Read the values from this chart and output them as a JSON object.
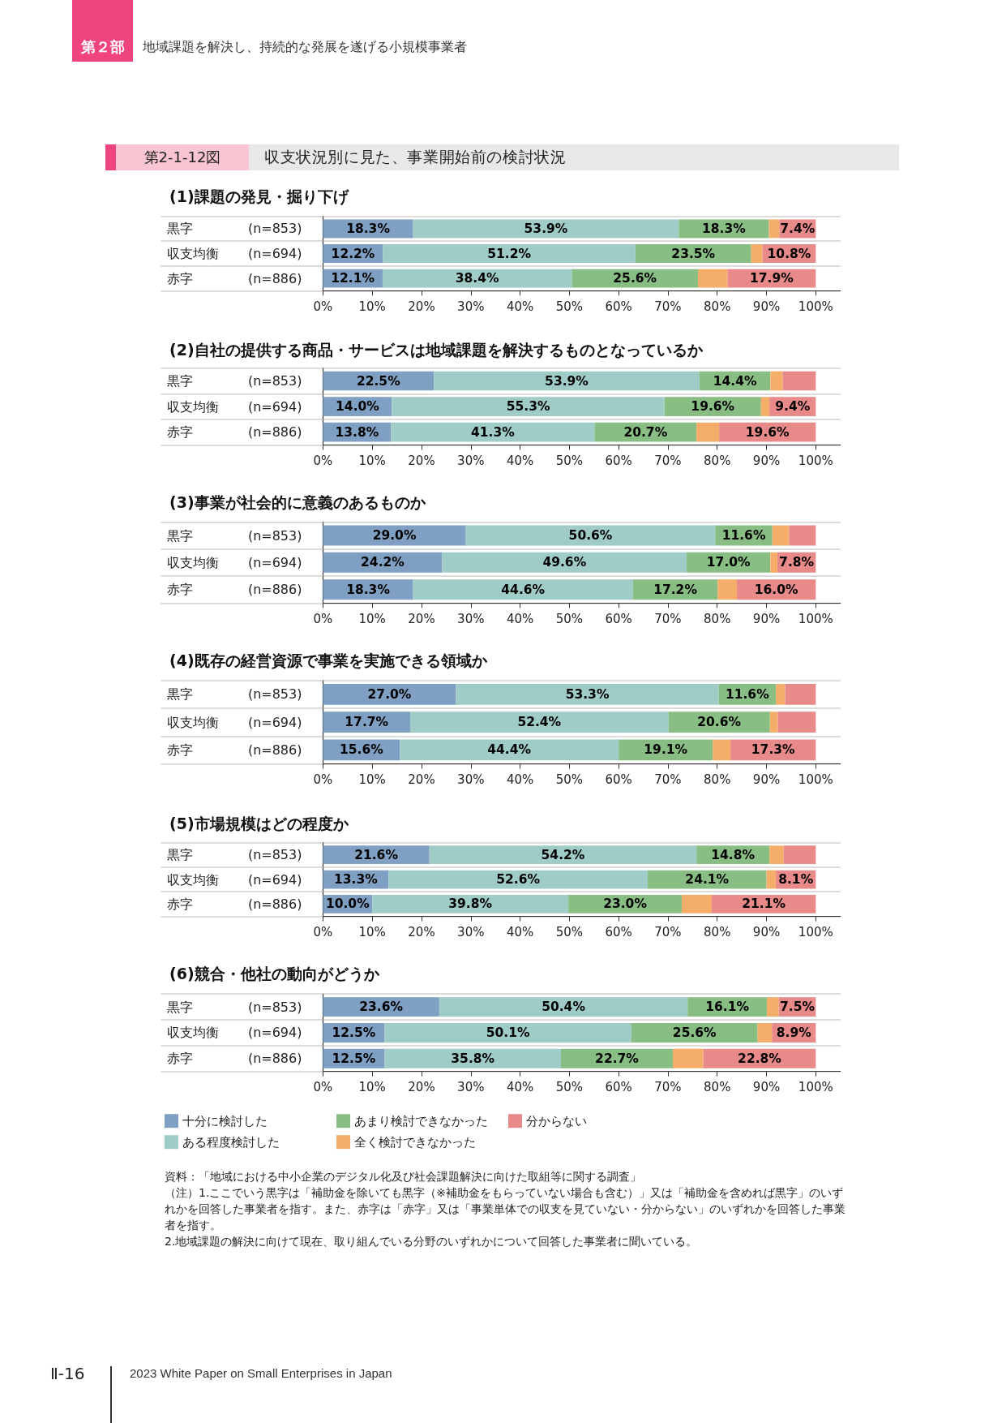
{
  "chart_data": [
    {
      "type": "bar",
      "orientation": "horizontal",
      "stacked": true,
      "title": "(1)課題の発見・掘り下げ",
      "annotations": [
        "第２部",
        "地域課題を解決し、持続的な発展を遂げる小規模事業者",
        "第2-1-12図",
        "収支状況別に見た、事業開始前の検討状況"
      ],
      "categories": [
        "黒字 (n=853)",
        "収支均衡 (n=694)",
        "赤字 (n=886)"
      ],
      "series": [
        {
          "color": "#7f9fc3",
          "values": [
            18.3,
            12.2,
            12.1
          ],
          "value_labels": [
            "18.3%",
            "12.2%",
            "12.1%"
          ]
        },
        {
          "color": "#9fccc7",
          "values": [
            53.9,
            51.2,
            38.4
          ],
          "value_labels": [
            "53.9%",
            "51.2%",
            "38.4%"
          ]
        },
        {
          "color": "#88bd83",
          "values": [
            18.3,
            23.5,
            25.6
          ],
          "value_labels": [
            "18.3%",
            "23.5%",
            "25.6%"
          ]
        },
        {
          "color": "#f4ae6a",
          "values": [
            2.1,
            2.3,
            6.0
          ],
          "value_labels": [
            null,
            null,
            null
          ]
        },
        {
          "color": "#e98a8a",
          "values": [
            7.4,
            10.8,
            17.9
          ],
          "value_labels": [
            "7.4%",
            "10.8%",
            "17.9%"
          ]
        }
      ],
      "xlim": [
        0,
        105
      ],
      "xticks": [
        {
          "value": 0,
          "label": "0%"
        },
        {
          "value": 10,
          "label": "10%"
        },
        {
          "value": 20,
          "label": "20%"
        },
        {
          "value": 30,
          "label": "30%"
        },
        {
          "value": 40,
          "label": "40%"
        },
        {
          "value": 50,
          "label": "50%"
        },
        {
          "value": 60,
          "label": "60%"
        },
        {
          "value": 70,
          "label": "70%"
        },
        {
          "value": 80,
          "label": "80%"
        },
        {
          "value": 90,
          "label": "90%"
        },
        {
          "value": 100,
          "label": "100%"
        }
      ],
      "grid": "y",
      "legend": false
    },
    {
      "type": "bar",
      "orientation": "horizontal",
      "stacked": true,
      "title": "(2)自社の提供する商品・サービスは地域課題を解決するものとなっているか",
      "categories": [
        "黒字 (n=853)",
        "収支均衡 (n=694)",
        "赤字 (n=886)"
      ],
      "series": [
        {
          "color": "#7f9fc3",
          "values": [
            22.5,
            14.0,
            13.8
          ],
          "value_labels": [
            "22.5%",
            "14.0%",
            "13.8%"
          ]
        },
        {
          "color": "#9fccc7",
          "values": [
            53.9,
            55.3,
            41.3
          ],
          "value_labels": [
            "53.9%",
            "55.3%",
            "41.3%"
          ]
        },
        {
          "color": "#88bd83",
          "values": [
            14.4,
            19.6,
            20.7
          ],
          "value_labels": [
            "14.4%",
            "19.6%",
            "20.7%"
          ]
        },
        {
          "color": "#f4ae6a",
          "values": [
            2.5,
            1.7,
            4.6
          ],
          "value_labels": [
            null,
            null,
            null
          ]
        },
        {
          "color": "#e98a8a",
          "values": [
            6.7,
            9.4,
            19.6
          ],
          "value_labels": [
            null,
            "9.4%",
            "19.6%"
          ]
        }
      ],
      "xlim": [
        0,
        105
      ],
      "xticks": [
        {
          "value": 0,
          "label": "0%"
        },
        {
          "value": 10,
          "label": "10%"
        },
        {
          "value": 20,
          "label": "20%"
        },
        {
          "value": 30,
          "label": "30%"
        },
        {
          "value": 40,
          "label": "40%"
        },
        {
          "value": 50,
          "label": "50%"
        },
        {
          "value": 60,
          "label": "60%"
        },
        {
          "value": 70,
          "label": "70%"
        },
        {
          "value": 80,
          "label": "80%"
        },
        {
          "value": 90,
          "label": "90%"
        },
        {
          "value": 100,
          "label": "100%"
        }
      ],
      "grid": "y",
      "legend": false
    },
    {
      "type": "bar",
      "orientation": "horizontal",
      "stacked": true,
      "title": "(3)事業が社会的に意義のあるものか",
      "categories": [
        "黒字 (n=853)",
        "収支均衡 (n=694)",
        "赤字 (n=886)"
      ],
      "series": [
        {
          "color": "#7f9fc3",
          "values": [
            29.0,
            24.2,
            18.3
          ],
          "value_labels": [
            "29.0%",
            "24.2%",
            "18.3%"
          ]
        },
        {
          "color": "#9fccc7",
          "values": [
            50.6,
            49.6,
            44.6
          ],
          "value_labels": [
            "50.6%",
            "49.6%",
            "44.6%"
          ]
        },
        {
          "color": "#88bd83",
          "values": [
            11.6,
            17.0,
            17.2
          ],
          "value_labels": [
            "11.6%",
            "17.0%",
            "17.2%"
          ]
        },
        {
          "color": "#f4ae6a",
          "values": [
            3.4,
            1.4,
            3.9
          ],
          "value_labels": [
            null,
            null,
            null
          ]
        },
        {
          "color": "#e98a8a",
          "values": [
            5.4,
            7.8,
            16.0
          ],
          "value_labels": [
            null,
            "7.8%",
            "16.0%"
          ]
        }
      ],
      "xlim": [
        0,
        105
      ],
      "xticks": [
        {
          "value": 0,
          "label": "0%"
        },
        {
          "value": 10,
          "label": "10%"
        },
        {
          "value": 20,
          "label": "20%"
        },
        {
          "value": 30,
          "label": "30%"
        },
        {
          "value": 40,
          "label": "40%"
        },
        {
          "value": 50,
          "label": "50%"
        },
        {
          "value": 60,
          "label": "60%"
        },
        {
          "value": 70,
          "label": "70%"
        },
        {
          "value": 80,
          "label": "80%"
        },
        {
          "value": 90,
          "label": "90%"
        },
        {
          "value": 100,
          "label": "100%"
        }
      ],
      "grid": "y",
      "legend": false
    },
    {
      "type": "bar",
      "orientation": "horizontal",
      "stacked": true,
      "title": "(4)既存の経営資源で事業を実施できる領域か",
      "categories": [
        "黒字 (n=853)",
        "収支均衡 (n=694)",
        "赤字 (n=886)"
      ],
      "series": [
        {
          "color": "#7f9fc3",
          "values": [
            27.0,
            17.7,
            15.6
          ],
          "value_labels": [
            "27.0%",
            "17.7%",
            "15.6%"
          ]
        },
        {
          "color": "#9fccc7",
          "values": [
            53.3,
            52.4,
            44.4
          ],
          "value_labels": [
            "53.3%",
            "52.4%",
            "44.4%"
          ]
        },
        {
          "color": "#88bd83",
          "values": [
            11.6,
            20.6,
            19.1
          ],
          "value_labels": [
            "11.6%",
            "20.6%",
            "19.1%"
          ]
        },
        {
          "color": "#f4ae6a",
          "values": [
            1.9,
            1.6,
            3.6
          ],
          "value_labels": [
            null,
            null,
            null
          ]
        },
        {
          "color": "#e98a8a",
          "values": [
            6.2,
            7.7,
            17.3
          ],
          "value_labels": [
            null,
            null,
            "17.3%"
          ]
        }
      ],
      "xlim": [
        0,
        105
      ],
      "xticks": [
        {
          "value": 0,
          "label": "0%"
        },
        {
          "value": 10,
          "label": "10%"
        },
        {
          "value": 20,
          "label": "20%"
        },
        {
          "value": 30,
          "label": "30%"
        },
        {
          "value": 40,
          "label": "40%"
        },
        {
          "value": 50,
          "label": "50%"
        },
        {
          "value": 60,
          "label": "60%"
        },
        {
          "value": 70,
          "label": "70%"
        },
        {
          "value": 80,
          "label": "80%"
        },
        {
          "value": 90,
          "label": "90%"
        },
        {
          "value": 100,
          "label": "100%"
        }
      ],
      "grid": "y",
      "legend": false
    },
    {
      "type": "bar",
      "orientation": "horizontal",
      "stacked": true,
      "title": "(5)市場規模はどの程度か",
      "categories": [
        "黒字 (n=853)",
        "収支均衡 (n=694)",
        "赤字 (n=886)"
      ],
      "series": [
        {
          "color": "#7f9fc3",
          "values": [
            21.6,
            13.3,
            10.0
          ],
          "value_labels": [
            "21.6%",
            "13.3%",
            "10.0%"
          ]
        },
        {
          "color": "#9fccc7",
          "values": [
            54.2,
            52.6,
            39.8
          ],
          "value_labels": [
            "54.2%",
            "52.6%",
            "39.8%"
          ]
        },
        {
          "color": "#88bd83",
          "values": [
            14.8,
            24.1,
            23.0
          ],
          "value_labels": [
            "14.8%",
            "24.1%",
            "23.0%"
          ]
        },
        {
          "color": "#f4ae6a",
          "values": [
            2.9,
            1.9,
            6.1
          ],
          "value_labels": [
            null,
            null,
            null
          ]
        },
        {
          "color": "#e98a8a",
          "values": [
            6.5,
            8.1,
            21.1
          ],
          "value_labels": [
            null,
            "8.1%",
            "21.1%"
          ]
        }
      ],
      "xlim": [
        0,
        105
      ],
      "xticks": [
        {
          "value": 0,
          "label": "0%"
        },
        {
          "value": 10,
          "label": "10%"
        },
        {
          "value": 20,
          "label": "20%"
        },
        {
          "value": 30,
          "label": "30%"
        },
        {
          "value": 40,
          "label": "40%"
        },
        {
          "value": 50,
          "label": "50%"
        },
        {
          "value": 60,
          "label": "60%"
        },
        {
          "value": 70,
          "label": "70%"
        },
        {
          "value": 80,
          "label": "80%"
        },
        {
          "value": 90,
          "label": "90%"
        },
        {
          "value": 100,
          "label": "100%"
        }
      ],
      "grid": "y",
      "legend": false
    },
    {
      "type": "bar",
      "orientation": "horizontal",
      "stacked": true,
      "title": "(6)競合・他社の動向がどうか",
      "annotations": [
        "資料：「地域における中小企業のデジタル化及び社会課題解決に向けた取組等に関する調査」",
        "（注）1.ここでいう黒字は「補助金を除いても黒字（※補助金をもらっていない場合も含む）」又は「補助金を含めれば黒字」のいずれかを回答した事業者を指す。また、赤字は「赤字」又は「事業単体での収支を見ていない・分からない」のいずれかを回答した事業者を指す。",
        "2.地域課題の解決に向けて現在、取り組んでいる分野のいずれかについて回答した事業者に聞いている。",
        "Ⅱ-16",
        "2023 White Paper on Small Enterprises in Japan"
      ],
      "categories": [
        "黒字 (n=853)",
        "収支均衡 (n=694)",
        "赤字 (n=886)"
      ],
      "series": [
        {
          "name": "十分に検討した",
          "color": "#7f9fc3",
          "values": [
            23.6,
            12.5,
            12.5
          ],
          "value_labels": [
            "23.6%",
            "12.5%",
            "12.5%"
          ]
        },
        {
          "name": "ある程度検討した",
          "color": "#9fccc7",
          "values": [
            50.4,
            50.1,
            35.8
          ],
          "value_labels": [
            "50.4%",
            "50.1%",
            "35.8%"
          ]
        },
        {
          "name": "あまり検討できなかった",
          "color": "#88bd83",
          "values": [
            16.1,
            25.6,
            22.7
          ],
          "value_labels": [
            "16.1%",
            "25.6%",
            "22.7%"
          ]
        },
        {
          "name": "全く検討できなかった",
          "color": "#f4ae6a",
          "values": [
            2.4,
            2.9,
            6.2
          ],
          "value_labels": [
            null,
            null,
            null
          ]
        },
        {
          "name": "分からない",
          "color": "#e98a8a",
          "values": [
            7.5,
            8.9,
            22.8
          ],
          "value_labels": [
            "7.5%",
            "8.9%",
            "22.8%"
          ]
        }
      ],
      "xlim": [
        0,
        105
      ],
      "xticks": [
        {
          "value": 0,
          "label": "0%"
        },
        {
          "value": 10,
          "label": "10%"
        },
        {
          "value": 20,
          "label": "20%"
        },
        {
          "value": 30,
          "label": "30%"
        },
        {
          "value": 40,
          "label": "40%"
        },
        {
          "value": 50,
          "label": "50%"
        },
        {
          "value": 60,
          "label": "60%"
        },
        {
          "value": 70,
          "label": "70%"
        },
        {
          "value": 80,
          "label": "80%"
        },
        {
          "value": 90,
          "label": "90%"
        },
        {
          "value": 100,
          "label": "100%"
        }
      ],
      "grid": "y",
      "legend": "bottom"
    }
  ]
}
